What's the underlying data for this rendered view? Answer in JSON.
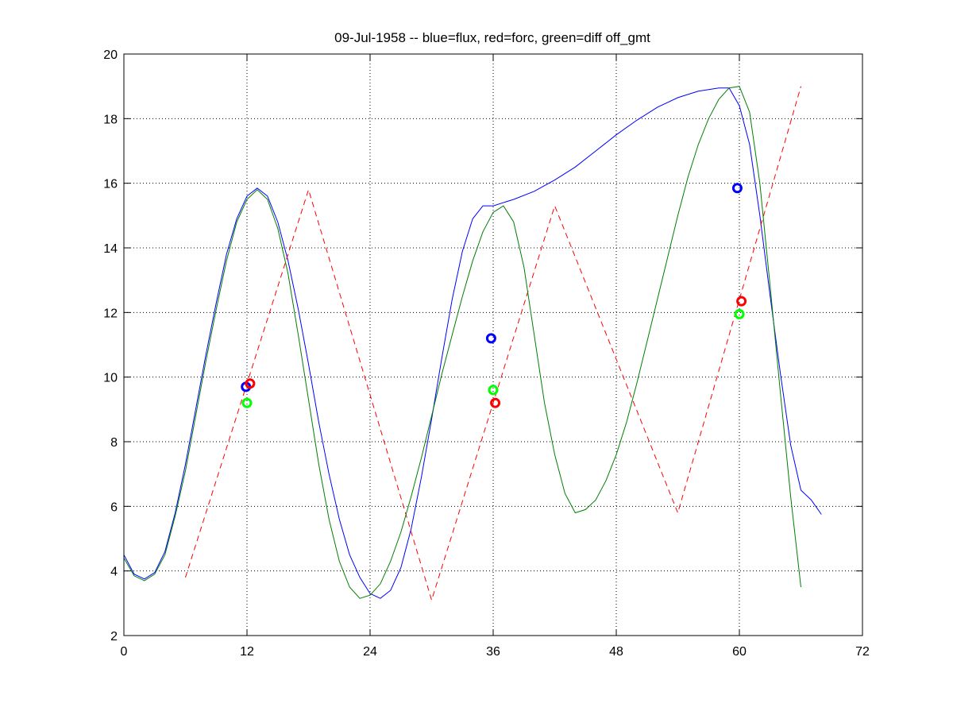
{
  "chart_data": {
    "type": "line",
    "title": "09-Jul-1958 -- blue=flux, red=forc, green=diff off_gmt",
    "xlabel": "",
    "ylabel": "",
    "xlim": [
      0,
      72
    ],
    "ylim": [
      2,
      20
    ],
    "x_ticks": [
      0,
      12,
      24,
      36,
      48,
      60,
      72
    ],
    "y_ticks": [
      2,
      4,
      6,
      8,
      10,
      12,
      14,
      16,
      18,
      20
    ],
    "grid": true,
    "legend": "none",
    "series": [
      {
        "color": "#0000ff",
        "style": "solid",
        "points": [
          [
            0,
            4.5
          ],
          [
            1,
            3.9
          ],
          [
            2,
            3.75
          ],
          [
            3,
            3.95
          ],
          [
            4,
            4.6
          ],
          [
            5,
            5.8
          ],
          [
            6,
            7.3
          ],
          [
            7,
            9.0
          ],
          [
            8,
            10.7
          ],
          [
            9,
            12.3
          ],
          [
            10,
            13.8
          ],
          [
            11,
            14.9
          ],
          [
            12,
            15.6
          ],
          [
            13,
            15.85
          ],
          [
            14,
            15.6
          ],
          [
            15,
            14.8
          ],
          [
            16,
            13.6
          ],
          [
            17,
            12.1
          ],
          [
            18,
            10.4
          ],
          [
            19,
            8.6
          ],
          [
            20,
            7.0
          ],
          [
            21,
            5.6
          ],
          [
            22,
            4.5
          ],
          [
            23,
            3.8
          ],
          [
            24,
            3.3
          ],
          [
            25,
            3.15
          ],
          [
            26,
            3.4
          ],
          [
            27,
            4.1
          ],
          [
            28,
            5.3
          ],
          [
            29,
            6.9
          ],
          [
            30,
            8.7
          ],
          [
            31,
            10.6
          ],
          [
            32,
            12.4
          ],
          [
            33,
            13.9
          ],
          [
            34,
            14.9
          ],
          [
            35,
            15.3
          ],
          [
            36,
            15.3
          ],
          [
            38,
            15.5
          ],
          [
            40,
            15.75
          ],
          [
            42,
            16.1
          ],
          [
            44,
            16.5
          ],
          [
            46,
            17.0
          ],
          [
            48,
            17.5
          ],
          [
            50,
            17.95
          ],
          [
            52,
            18.35
          ],
          [
            54,
            18.65
          ],
          [
            56,
            18.85
          ],
          [
            57,
            18.9
          ],
          [
            58,
            18.95
          ],
          [
            59,
            18.95
          ],
          [
            60,
            18.4
          ],
          [
            61,
            17.2
          ],
          [
            62,
            15.0
          ],
          [
            63,
            12.5
          ],
          [
            64,
            10.1
          ],
          [
            65,
            7.9
          ],
          [
            66,
            6.5
          ],
          [
            67,
            6.2
          ],
          [
            68,
            5.75
          ]
        ]
      },
      {
        "color": "#ff0000",
        "style": "dashed",
        "points": [
          [
            6,
            3.8
          ],
          [
            18,
            15.8
          ],
          [
            30,
            3.1
          ],
          [
            42,
            15.3
          ],
          [
            54,
            5.8
          ],
          [
            66,
            19.0
          ]
        ]
      },
      {
        "color": "#007f00",
        "style": "solid",
        "points": [
          [
            0,
            4.4
          ],
          [
            1,
            3.85
          ],
          [
            2,
            3.7
          ],
          [
            3,
            3.9
          ],
          [
            4,
            4.5
          ],
          [
            5,
            5.7
          ],
          [
            6,
            7.1
          ],
          [
            7,
            8.8
          ],
          [
            8,
            10.5
          ],
          [
            9,
            12.1
          ],
          [
            10,
            13.6
          ],
          [
            11,
            14.8
          ],
          [
            12,
            15.5
          ],
          [
            13,
            15.8
          ],
          [
            14,
            15.5
          ],
          [
            15,
            14.6
          ],
          [
            16,
            13.2
          ],
          [
            17,
            11.3
          ],
          [
            18,
            9.3
          ],
          [
            19,
            7.3
          ],
          [
            20,
            5.6
          ],
          [
            21,
            4.3
          ],
          [
            22,
            3.5
          ],
          [
            23,
            3.15
          ],
          [
            24,
            3.25
          ],
          [
            25,
            3.6
          ],
          [
            26,
            4.3
          ],
          [
            27,
            5.2
          ],
          [
            28,
            6.3
          ],
          [
            29,
            7.5
          ],
          [
            30,
            8.8
          ],
          [
            31,
            10.1
          ],
          [
            32,
            11.3
          ],
          [
            33,
            12.5
          ],
          [
            34,
            13.6
          ],
          [
            35,
            14.5
          ],
          [
            36,
            15.1
          ],
          [
            37,
            15.3
          ],
          [
            38,
            14.8
          ],
          [
            39,
            13.4
          ],
          [
            40,
            11.3
          ],
          [
            41,
            9.2
          ],
          [
            42,
            7.6
          ],
          [
            43,
            6.4
          ],
          [
            44,
            5.8
          ],
          [
            45,
            5.9
          ],
          [
            46,
            6.2
          ],
          [
            47,
            6.8
          ],
          [
            48,
            7.6
          ],
          [
            49,
            8.6
          ],
          [
            50,
            9.8
          ],
          [
            51,
            11.1
          ],
          [
            52,
            12.4
          ],
          [
            53,
            13.7
          ],
          [
            54,
            15.0
          ],
          [
            55,
            16.2
          ],
          [
            56,
            17.2
          ],
          [
            57,
            18.0
          ],
          [
            58,
            18.6
          ],
          [
            59,
            18.95
          ],
          [
            60,
            19.0
          ],
          [
            61,
            18.2
          ],
          [
            62,
            16.0
          ],
          [
            63,
            12.8
          ],
          [
            64,
            9.5
          ],
          [
            65,
            6.3
          ],
          [
            66,
            3.5
          ]
        ]
      }
    ],
    "markers": [
      {
        "series_color": "#0000ff",
        "x": 11.9,
        "y": 9.7
      },
      {
        "series_color": "#ff0000",
        "x": 12.3,
        "y": 9.8
      },
      {
        "series_color": "#00ff00",
        "x": 12.0,
        "y": 9.2
      },
      {
        "series_color": "#0000ff",
        "x": 35.8,
        "y": 11.2
      },
      {
        "series_color": "#00ff00",
        "x": 36.0,
        "y": 9.6
      },
      {
        "series_color": "#ff0000",
        "x": 36.2,
        "y": 9.2
      },
      {
        "series_color": "#0000ff",
        "x": 59.8,
        "y": 15.85
      },
      {
        "series_color": "#ff0000",
        "x": 60.2,
        "y": 12.35
      },
      {
        "series_color": "#00ff00",
        "x": 60.0,
        "y": 11.95
      }
    ]
  }
}
